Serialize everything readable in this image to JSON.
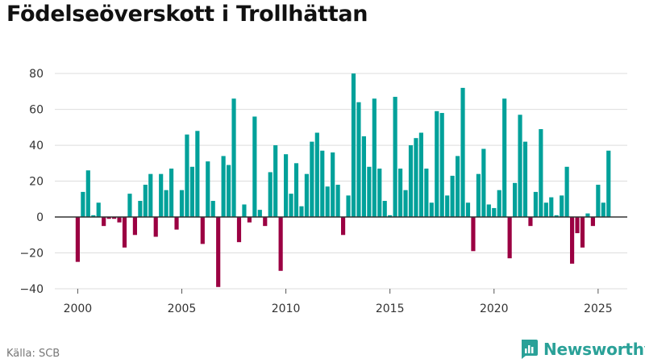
{
  "title": "Födelseöverskott i Trollhättan",
  "source": "Källa: SCB",
  "brand": {
    "name": "Newsworthy",
    "color": "#2aa198"
  },
  "chart_data": {
    "type": "bar",
    "title": "Födelseöverskott i Trollhättan",
    "xlabel": "",
    "ylabel": "",
    "x_start": 2000,
    "x_step": 0.25,
    "xlim": [
      1998.9,
      2026.4
    ],
    "ylim": [
      -40,
      85
    ],
    "y_ticks": [
      -40,
      -20,
      0,
      20,
      40,
      60,
      80
    ],
    "x_ticks": [
      "2000",
      "2005",
      "2010",
      "2015",
      "2020",
      "2025"
    ],
    "grid": true,
    "positive_color": "#00a19a",
    "negative_color": "#9b0042",
    "values": [
      -25,
      14,
      26,
      1,
      8,
      -5,
      -1,
      -1,
      -3,
      -17,
      13,
      -10,
      9,
      18,
      24,
      -11,
      24,
      15,
      27,
      -7,
      15,
      46,
      28,
      48,
      -15,
      31,
      9,
      -39,
      34,
      29,
      66,
      -14,
      7,
      -3,
      56,
      4,
      -5,
      25,
      40,
      -30,
      35,
      13,
      30,
      6,
      24,
      42,
      47,
      37,
      17,
      36,
      18,
      -10,
      12,
      80,
      64,
      45,
      28,
      66,
      27,
      9,
      1,
      67,
      27,
      15,
      40,
      44,
      47,
      27,
      8,
      59,
      58,
      12,
      23,
      34,
      72,
      8,
      -19,
      24,
      38,
      7,
      5,
      15,
      66,
      -23,
      19,
      57,
      42,
      -5,
      14,
      49,
      8,
      11,
      1,
      12,
      28,
      -26,
      -9,
      -17,
      2,
      -5,
      18,
      8,
      37
    ]
  }
}
